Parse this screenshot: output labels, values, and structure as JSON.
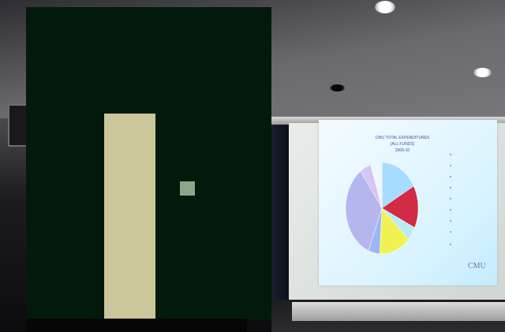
{
  "slide": {
    "title_line1": "CMU TOTAL EXPENDITURES",
    "title_line2": "(ALL FUNDS)",
    "title_line3": "2009-10",
    "logo": "CMU"
  },
  "pie_slices": [
    {
      "value": 17,
      "color": "#a6dcff"
    },
    {
      "value": 15,
      "color": "#d12b45"
    },
    {
      "value": 5,
      "color": "#b9ecf4"
    },
    {
      "value": 14,
      "color": "#f1f252"
    },
    {
      "value": 5,
      "color": "#9bb7f0"
    },
    {
      "value": 34,
      "color": "#b6b6ef"
    },
    {
      "value": 5,
      "color": "#d4c5f3"
    },
    {
      "value": 5,
      "color": "#eef7fb"
    }
  ],
  "colors": {
    "overlay_green": "#021a0b",
    "overlay_beige": "#cbc59c",
    "overlay_square": "#8ba789"
  }
}
